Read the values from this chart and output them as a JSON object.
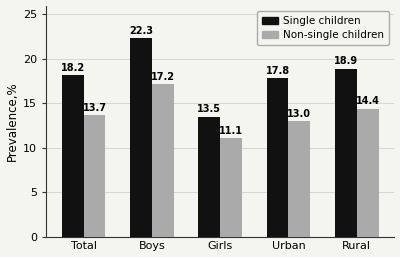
{
  "categories": [
    "Total",
    "Boys",
    "Girls",
    "Urban",
    "Rural"
  ],
  "single_children": [
    18.2,
    22.3,
    13.5,
    17.8,
    18.9
  ],
  "non_single_children": [
    13.7,
    17.2,
    11.1,
    13.0,
    14.4
  ],
  "single_color": "#111111",
  "non_single_color": "#aaaaaa",
  "ylabel": "Prevalence,%",
  "ylim": [
    0,
    26
  ],
  "yticks": [
    0,
    5,
    10,
    15,
    20,
    25
  ],
  "legend_single": "Single children",
  "legend_non_single": "Non-single children",
  "bar_width": 0.32,
  "label_fontsize": 7.0,
  "axis_fontsize": 8.5,
  "tick_fontsize": 8.0,
  "legend_fontsize": 7.5,
  "background_color": "#f5f5f0",
  "grid_color": "#d0d0d0",
  "spine_color": "#333333"
}
